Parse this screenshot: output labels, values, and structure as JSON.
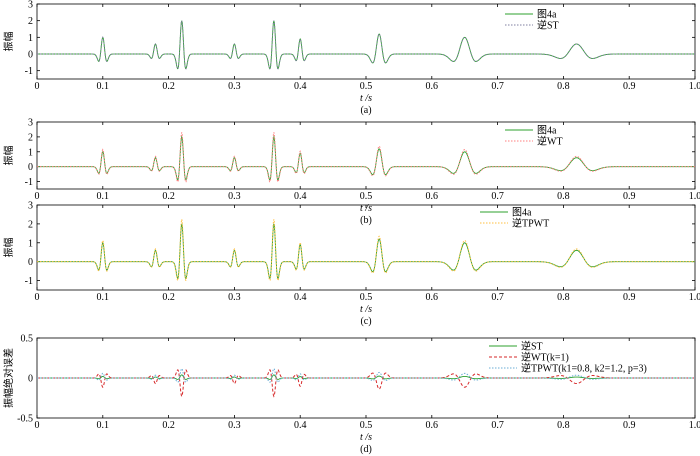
{
  "chart_data": [
    {
      "type": "line",
      "panel_label": "(a)",
      "xlabel": "t /s",
      "ylabel": "振幅",
      "xlim": [
        0,
        1.0
      ],
      "ylim": [
        -1.5,
        3
      ],
      "xticks": [
        "0",
        "0.1",
        "0.2",
        "0.3",
        "0.4",
        "0.5",
        "0.6",
        "0.7",
        "0.8",
        "0.9",
        "1.0"
      ],
      "yticks": [
        "-1",
        "0",
        "1",
        "2",
        "3"
      ],
      "legend_position": "top-right",
      "wavelets": [
        {
          "t": 0.1,
          "a": 1.0,
          "w": 0.005
        },
        {
          "t": 0.18,
          "a": 0.6,
          "w": 0.005
        },
        {
          "t": 0.22,
          "a": 2.0,
          "w": 0.005
        },
        {
          "t": 0.3,
          "a": 0.6,
          "w": 0.005
        },
        {
          "t": 0.36,
          "a": 2.0,
          "w": 0.005
        },
        {
          "t": 0.4,
          "a": 0.9,
          "w": 0.005
        },
        {
          "t": 0.52,
          "a": 1.2,
          "w": 0.008
        },
        {
          "t": 0.65,
          "a": 1.0,
          "w": 0.014
        },
        {
          "t": 0.82,
          "a": 0.6,
          "w": 0.02
        }
      ],
      "series": [
        {
          "name": "图4a",
          "color": "#2ca02c",
          "style": "solid",
          "scale": 1.0
        },
        {
          "name": "逆ST",
          "color": "#7f7fa0",
          "style": "dotted",
          "scale": 1.0
        }
      ]
    },
    {
      "type": "line",
      "panel_label": "(b)",
      "xlabel": "t /s",
      "ylabel": "振幅",
      "xlim": [
        0,
        1.0
      ],
      "ylim": [
        -1.5,
        3
      ],
      "xticks": [
        "0",
        "0.1",
        "0.2",
        "0.3",
        "0.4",
        "0.5",
        "0.6",
        "0.7",
        "0.8",
        "0.9",
        "1.0"
      ],
      "yticks": [
        "-1",
        "0",
        "1",
        "2",
        "3"
      ],
      "legend_position": "top-right",
      "series": [
        {
          "name": "图4a",
          "color": "#2ca02c",
          "style": "solid",
          "scale": 1.0
        },
        {
          "name": "逆WT",
          "color": "#ff7f7f",
          "style": "dotted",
          "scale": 1.15
        }
      ]
    },
    {
      "type": "line",
      "panel_label": "(c)",
      "xlabel": "t /s",
      "ylabel": "振幅",
      "xlim": [
        0,
        1.0
      ],
      "ylim": [
        -1.5,
        3
      ],
      "xticks": [
        "0",
        "0.1",
        "0.2",
        "0.3",
        "0.4",
        "0.5",
        "0.6",
        "0.7",
        "0.8",
        "0.9",
        "1.0"
      ],
      "yticks": [
        "-1",
        "0",
        "1",
        "2",
        "3"
      ],
      "legend_position": "top-right",
      "series": [
        {
          "name": "图4a",
          "color": "#2ca02c",
          "style": "solid",
          "scale": 1.0
        },
        {
          "name": "逆TPWT",
          "color": "#ffbf3f",
          "style": "dotted",
          "scale": 1.12
        }
      ]
    },
    {
      "type": "line",
      "panel_label": "(d)",
      "xlabel": "t /s",
      "ylabel": "振幅绝对误差",
      "xlim": [
        0,
        1.0
      ],
      "ylim": [
        -0.5,
        0.5
      ],
      "xticks": [
        "0",
        "0.1",
        "0.2",
        "0.3",
        "0.4",
        "0.5",
        "0.6",
        "0.7",
        "0.8",
        "0.9",
        "1.0"
      ],
      "yticks": [
        "-0.5",
        "0",
        "0.5"
      ],
      "legend_position": "top-right",
      "series": [
        {
          "name": "逆ST",
          "color": "#2ca02c",
          "style": "solid",
          "scale": 0.04
        },
        {
          "name": "逆WT(k=1)",
          "color": "#d62728",
          "style": "dashed",
          "scale": 0.23
        },
        {
          "name": "逆TPWT(k1=0.8, k2=1.2, p=3)",
          "color": "#6baed6",
          "style": "dotted",
          "scale": 0.13
        }
      ]
    }
  ]
}
